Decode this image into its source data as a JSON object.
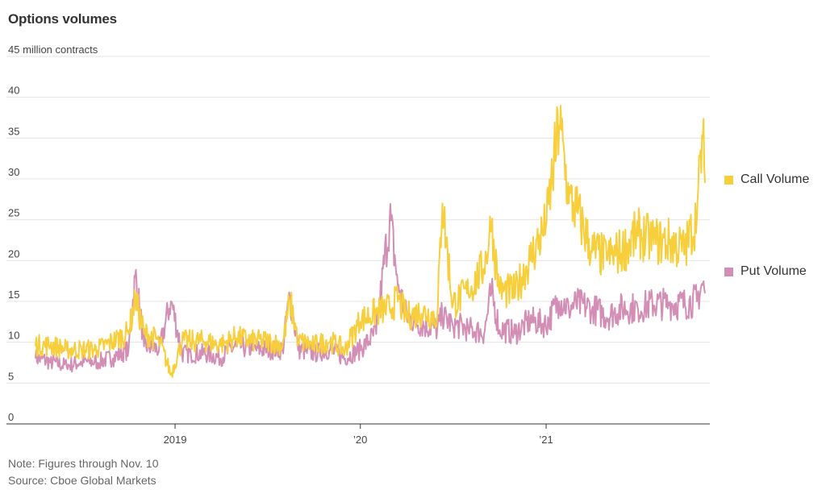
{
  "title": "Options volumes",
  "notes": {
    "note": "Note: Figures through Nov. 10",
    "source": "Source: Cboe Global Markets"
  },
  "colors": {
    "call": "#F7CF3C",
    "put": "#D38EB6",
    "grid": "#e4e4e4",
    "axis": "#333333"
  },
  "chart_data": {
    "type": "line",
    "title": "Options volumes",
    "ylabel": "45 million contracts",
    "ylim": [
      0,
      45
    ],
    "yticks": [
      0,
      5,
      10,
      15,
      20,
      25,
      30,
      35,
      40,
      45
    ],
    "ytick_labels": [
      "0",
      "5",
      "10",
      "15",
      "20",
      "25",
      "30",
      "35",
      "40",
      "45 million contracts"
    ],
    "xlim": [
      "2018-04-01",
      "2021-11-10"
    ],
    "xticks": [
      {
        "date": "2019-01-01",
        "label": "2019"
      },
      {
        "date": "2020-01-01",
        "label": "’20"
      },
      {
        "date": "2021-01-01",
        "label": "’21"
      }
    ],
    "grid": true,
    "legend_position": "right",
    "x": [
      "2018-04-01",
      "2018-05-01",
      "2018-06-01",
      "2018-07-01",
      "2018-08-01",
      "2018-09-01",
      "2018-10-01",
      "2018-10-15",
      "2018-11-01",
      "2018-12-01",
      "2018-12-24",
      "2019-01-15",
      "2019-02-01",
      "2019-03-01",
      "2019-04-01",
      "2019-05-01",
      "2019-06-01",
      "2019-07-01",
      "2019-08-01",
      "2019-08-15",
      "2019-09-01",
      "2019-10-01",
      "2019-11-01",
      "2019-12-01",
      "2020-01-01",
      "2020-02-01",
      "2020-02-28",
      "2020-03-15",
      "2020-04-01",
      "2020-05-01",
      "2020-06-01",
      "2020-06-10",
      "2020-07-01",
      "2020-08-01",
      "2020-09-01",
      "2020-09-15",
      "2020-10-01",
      "2020-11-01",
      "2020-12-01",
      "2021-01-01",
      "2021-01-27",
      "2021-02-15",
      "2021-03-01",
      "2021-04-01",
      "2021-05-01",
      "2021-06-01",
      "2021-07-01",
      "2021-08-01",
      "2021-09-01",
      "2021-10-01",
      "2021-10-25",
      "2021-11-05",
      "2021-11-10"
    ],
    "series": [
      {
        "name": "Call Volume",
        "values": [
          9.5,
          9.5,
          9.0,
          9.0,
          9.0,
          10.0,
          11.0,
          15.0,
          11.0,
          10.0,
          6.0,
          10.0,
          10.0,
          10.0,
          9.5,
          10.5,
          10.0,
          10.0,
          9.5,
          15.0,
          10.0,
          9.5,
          10.0,
          9.0,
          12.5,
          13.5,
          14.0,
          15.0,
          13.0,
          13.5,
          13.0,
          27.0,
          14.5,
          16.0,
          19.0,
          24.0,
          16.0,
          16.0,
          20.0,
          24.0,
          36.5,
          27.0,
          26.0,
          21.0,
          20.0,
          21.0,
          23.0,
          22.0,
          22.0,
          21.0,
          25.0,
          35.0,
          29.5
        ]
      },
      {
        "name": "Put Volume",
        "values": [
          8.0,
          7.5,
          7.0,
          7.5,
          7.5,
          8.0,
          9.0,
          18.0,
          9.5,
          9.0,
          15.0,
          8.5,
          8.5,
          8.5,
          8.0,
          9.5,
          9.0,
          9.0,
          9.0,
          15.5,
          9.0,
          8.5,
          9.0,
          8.0,
          9.0,
          11.0,
          25.0,
          17.0,
          13.0,
          12.0,
          11.5,
          13.0,
          12.0,
          11.5,
          11.0,
          16.0,
          11.5,
          11.0,
          12.5,
          12.0,
          15.0,
          14.0,
          14.5,
          14.0,
          13.0,
          14.0,
          14.0,
          14.5,
          14.5,
          14.5,
          15.0,
          17.0,
          16.0
        ]
      }
    ]
  }
}
